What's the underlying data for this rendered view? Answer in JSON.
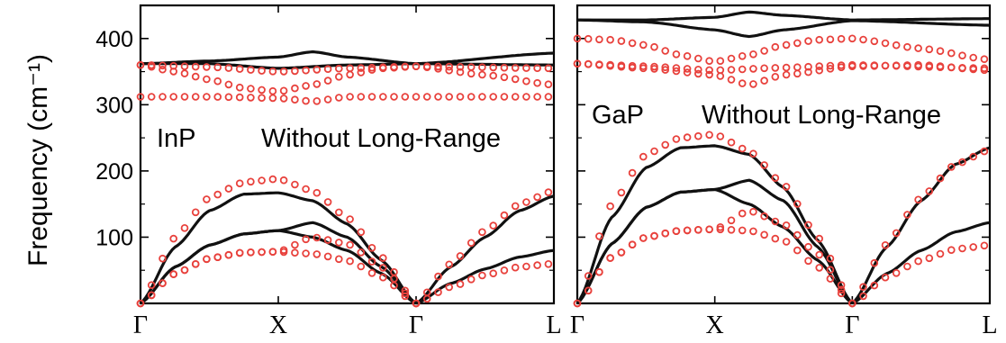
{
  "figure": {
    "ylabel": "Frequency (cm⁻¹)",
    "yticks": [
      100,
      200,
      300,
      400
    ],
    "ylim": [
      0,
      450
    ],
    "xticks": [
      "Γ",
      "X",
      "Γ",
      "L"
    ]
  },
  "chart_data": [
    {
      "type": "line",
      "panel": "InP",
      "title": "InP",
      "subtitle": "Without Long-Range",
      "ylabel": "Frequency (cm⁻¹)",
      "ylim": [
        0,
        450
      ],
      "x_ticks": [
        "Γ",
        "X",
        "Γ",
        "L"
      ],
      "x_tick_positions": [
        0,
        1,
        2,
        3
      ],
      "yticks": [
        100,
        200,
        300,
        400
      ],
      "series": [
        {
          "style": "solid",
          "x": [
            0,
            0.25,
            0.5,
            0.75,
            1.0,
            1.25,
            1.5,
            1.75,
            2.0
          ],
          "y": [
            0,
            85,
            140,
            165,
            167,
            155,
            120,
            65,
            0
          ]
        },
        {
          "style": "solid",
          "x": [
            0,
            0.25,
            0.5,
            0.75,
            1.0,
            1.25,
            1.5,
            1.75,
            2.0
          ],
          "y": [
            0,
            55,
            88,
            105,
            110,
            122,
            100,
            55,
            0
          ]
        },
        {
          "style": "solid",
          "x": [
            0,
            0.25,
            0.5,
            0.75,
            1.0,
            1.25,
            1.5,
            1.75,
            2.0
          ],
          "y": [
            0,
            55,
            88,
            105,
            110,
            100,
            80,
            45,
            0
          ]
        },
        {
          "style": "solid",
          "x": [
            2.0,
            2.25,
            2.5,
            2.75,
            3.0
          ],
          "y": [
            0,
            55,
            100,
            140,
            162
          ]
        },
        {
          "style": "solid",
          "x": [
            2.0,
            2.25,
            2.5,
            2.75,
            3.0
          ],
          "y": [
            0,
            30,
            52,
            70,
            80
          ]
        },
        {
          "style": "solid",
          "x": [
            0,
            0.5,
            1.0,
            1.25,
            1.5,
            2.0,
            3.0
          ],
          "y": [
            362,
            366,
            372,
            380,
            372,
            362,
            378
          ]
        },
        {
          "style": "solid",
          "x": [
            0,
            0.5,
            1.0,
            1.5,
            2.0,
            3.0
          ],
          "y": [
            362,
            362,
            355,
            360,
            362,
            360
          ]
        },
        {
          "style": "dotted",
          "x": [
            0,
            0.25,
            0.5,
            0.75,
            1.0,
            1.25,
            1.5,
            1.75,
            2.0
          ],
          "y": [
            0,
            100,
            160,
            183,
            188,
            170,
            130,
            70,
            0
          ]
        },
        {
          "style": "dotted",
          "x": [
            0,
            0.25,
            0.5,
            0.75,
            1.0,
            1.25,
            1.5,
            1.75,
            2.0
          ],
          "y": [
            0,
            45,
            68,
            77,
            78,
            100,
            90,
            55,
            0
          ]
        },
        {
          "style": "dotted",
          "x": [
            0,
            0.25,
            0.5,
            0.75,
            1.0,
            1.25,
            1.5,
            1.75,
            2.0
          ],
          "y": [
            0,
            45,
            68,
            77,
            78,
            75,
            65,
            40,
            0
          ]
        },
        {
          "style": "dotted",
          "x": [
            2.0,
            2.25,
            2.5,
            2.75,
            3.0
          ],
          "y": [
            0,
            60,
            110,
            150,
            170
          ]
        },
        {
          "style": "dotted",
          "x": [
            2.0,
            2.25,
            2.5,
            2.75,
            3.0
          ],
          "y": [
            0,
            25,
            43,
            55,
            60
          ]
        },
        {
          "style": "dotted",
          "x": [
            0,
            0.25,
            0.5,
            0.75,
            1.0,
            1.25,
            1.5,
            1.75,
            2.0,
            2.5,
            3.0
          ],
          "y": [
            360,
            350,
            338,
            325,
            320,
            330,
            345,
            355,
            358,
            345,
            330
          ]
        },
        {
          "style": "dotted",
          "x": [
            0,
            0.5,
            1.0,
            1.5,
            2.0,
            3.0
          ],
          "y": [
            360,
            357,
            350,
            355,
            358,
            355
          ]
        },
        {
          "style": "dotted",
          "x": [
            0,
            0.5,
            1.0,
            1.25,
            1.5,
            2.0,
            3.0
          ],
          "y": [
            312,
            312,
            310,
            305,
            312,
            312,
            312
          ]
        }
      ]
    },
    {
      "type": "line",
      "panel": "GaP",
      "title": "GaP",
      "subtitle": "Without Long-Range",
      "ylim": [
        0,
        450
      ],
      "x_ticks": [
        "Γ",
        "X",
        "Γ",
        "L"
      ],
      "x_tick_positions": [
        0,
        1,
        2,
        3
      ],
      "series": [
        {
          "style": "solid",
          "x": [
            0,
            0.25,
            0.5,
            0.75,
            1.0,
            1.25,
            1.5,
            1.75,
            2.0
          ],
          "y": [
            0,
            130,
            205,
            235,
            238,
            225,
            175,
            95,
            0
          ]
        },
        {
          "style": "solid",
          "x": [
            0,
            0.25,
            0.5,
            0.75,
            1.0,
            1.25,
            1.5,
            1.75,
            2.0
          ],
          "y": [
            0,
            90,
            145,
            168,
            172,
            186,
            155,
            85,
            0
          ]
        },
        {
          "style": "solid",
          "x": [
            0,
            0.25,
            0.5,
            0.75,
            1.0,
            1.25,
            1.5,
            1.75,
            2.0
          ],
          "y": [
            0,
            90,
            145,
            168,
            172,
            150,
            115,
            65,
            0
          ]
        },
        {
          "style": "solid",
          "x": [
            2.0,
            2.25,
            2.5,
            2.75,
            3.0
          ],
          "y": [
            0,
            85,
            155,
            210,
            235
          ]
        },
        {
          "style": "solid",
          "x": [
            2.0,
            2.25,
            2.5,
            2.75,
            3.0
          ],
          "y": [
            0,
            45,
            80,
            108,
            122
          ]
        },
        {
          "style": "solid",
          "x": [
            0,
            0.5,
            1.0,
            1.25,
            1.5,
            2.0,
            3.0
          ],
          "y": [
            428,
            428,
            432,
            440,
            435,
            428,
            430
          ]
        },
        {
          "style": "solid",
          "x": [
            0,
            0.5,
            1.0,
            1.25,
            1.5,
            2.0,
            3.0
          ],
          "y": [
            428,
            425,
            413,
            403,
            413,
            427,
            420
          ]
        },
        {
          "style": "dotted",
          "x": [
            0,
            0.25,
            0.5,
            0.75,
            1.0,
            1.25,
            1.5,
            1.75,
            2.0
          ],
          "y": [
            0,
            150,
            225,
            250,
            255,
            230,
            180,
            100,
            0
          ]
        },
        {
          "style": "dotted",
          "x": [
            0,
            0.25,
            0.5,
            0.75,
            1.0,
            1.25,
            1.5,
            1.75,
            2.0
          ],
          "y": [
            0,
            70,
            100,
            110,
            112,
            140,
            120,
            75,
            0
          ]
        },
        {
          "style": "dotted",
          "x": [
            0,
            0.25,
            0.5,
            0.75,
            1.0,
            1.25,
            1.5,
            1.75,
            2.0
          ],
          "y": [
            0,
            70,
            100,
            110,
            112,
            110,
            95,
            55,
            0
          ]
        },
        {
          "style": "dotted",
          "x": [
            2.0,
            2.25,
            2.5,
            2.75,
            3.0
          ],
          "y": [
            0,
            90,
            160,
            210,
            232
          ]
        },
        {
          "style": "dotted",
          "x": [
            2.0,
            2.25,
            2.5,
            2.75,
            3.0
          ],
          "y": [
            0,
            40,
            65,
            82,
            88
          ]
        },
        {
          "style": "dotted",
          "x": [
            0,
            0.25,
            0.5,
            0.75,
            1.0,
            1.25,
            1.5,
            1.75,
            2.0,
            2.5,
            3.0
          ],
          "y": [
            400,
            398,
            390,
            375,
            365,
            375,
            390,
            398,
            400,
            385,
            368
          ]
        },
        {
          "style": "dotted",
          "x": [
            0,
            0.5,
            1.0,
            1.25,
            1.5,
            2.0,
            2.5,
            3.0
          ],
          "y": [
            362,
            355,
            345,
            330,
            345,
            358,
            360,
            352
          ]
        },
        {
          "style": "dotted",
          "x": [
            0,
            0.5,
            1.0,
            1.5,
            2.0,
            3.0
          ],
          "y": [
            362,
            358,
            352,
            356,
            360,
            355
          ]
        }
      ]
    }
  ]
}
